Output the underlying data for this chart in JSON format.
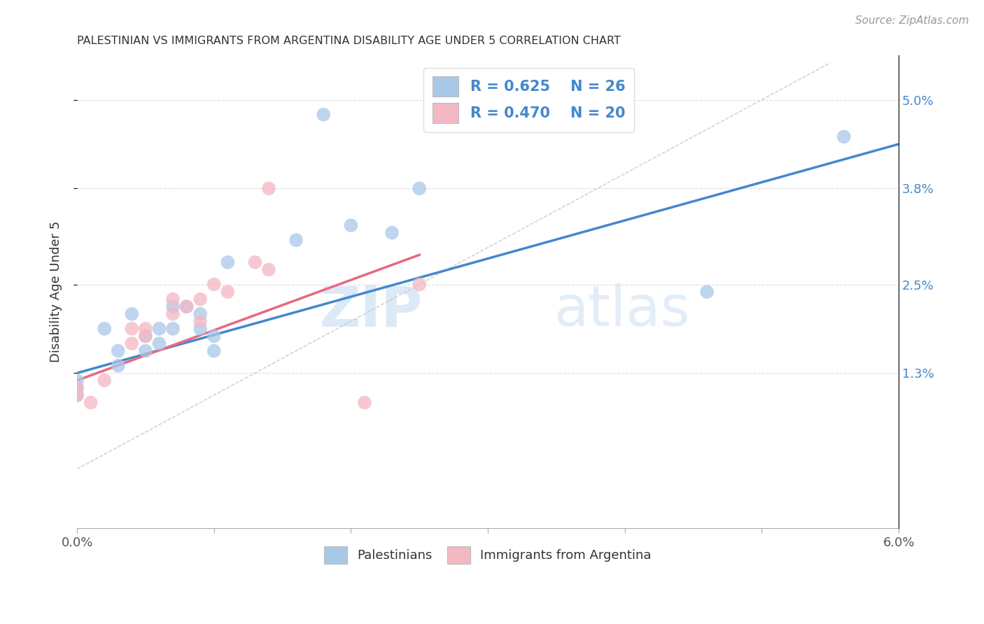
{
  "title": "PALESTINIAN VS IMMIGRANTS FROM ARGENTINA DISABILITY AGE UNDER 5 CORRELATION CHART",
  "source": "Source: ZipAtlas.com",
  "ylabel": "Disability Age Under 5",
  "xlim": [
    0.0,
    0.06
  ],
  "ylim": [
    -0.008,
    0.056
  ],
  "xticks": [
    0.0,
    0.01,
    0.02,
    0.03,
    0.04,
    0.05,
    0.06
  ],
  "xticklabels": [
    "0.0%",
    "",
    "",
    "",
    "",
    "",
    "6.0%"
  ],
  "yticks": [
    0.013,
    0.025,
    0.038,
    0.05
  ],
  "yticklabels": [
    "1.3%",
    "2.5%",
    "3.8%",
    "5.0%"
  ],
  "legend_r1": "R = 0.625",
  "legend_n1": "N = 26",
  "legend_r2": "R = 0.470",
  "legend_n2": "N = 20",
  "blue_color": "#a8c8e8",
  "pink_color": "#f4b8c4",
  "line_blue": "#4488cc",
  "line_pink": "#e86880",
  "diagonal_color": "#cccccc",
  "watermark_zip": "ZIP",
  "watermark_atlas": "atlas",
  "palestinians_x": [
    0.0,
    0.0,
    0.0,
    0.002,
    0.003,
    0.003,
    0.004,
    0.005,
    0.005,
    0.006,
    0.006,
    0.007,
    0.007,
    0.008,
    0.009,
    0.009,
    0.01,
    0.01,
    0.011,
    0.016,
    0.018,
    0.02,
    0.023,
    0.025,
    0.046,
    0.056
  ],
  "palestinians_y": [
    0.01,
    0.011,
    0.012,
    0.019,
    0.014,
    0.016,
    0.021,
    0.016,
    0.018,
    0.017,
    0.019,
    0.019,
    0.022,
    0.022,
    0.019,
    0.021,
    0.016,
    0.018,
    0.028,
    0.031,
    0.048,
    0.033,
    0.032,
    0.038,
    0.024,
    0.045
  ],
  "argentina_x": [
    0.0,
    0.0,
    0.001,
    0.002,
    0.004,
    0.004,
    0.005,
    0.005,
    0.007,
    0.007,
    0.008,
    0.009,
    0.009,
    0.01,
    0.011,
    0.013,
    0.014,
    0.014,
    0.021,
    0.025
  ],
  "argentina_y": [
    0.01,
    0.011,
    0.009,
    0.012,
    0.017,
    0.019,
    0.018,
    0.019,
    0.021,
    0.023,
    0.022,
    0.02,
    0.023,
    0.025,
    0.024,
    0.028,
    0.027,
    0.038,
    0.009,
    0.025
  ],
  "blue_line_x": [
    0.0,
    0.06
  ],
  "blue_line_y": [
    0.013,
    0.044
  ],
  "pink_line_x": [
    0.0,
    0.025
  ],
  "pink_line_y": [
    0.012,
    0.029
  ],
  "diag_line_x": [
    0.0,
    0.055
  ],
  "diag_line_y": [
    0.0,
    0.055
  ]
}
